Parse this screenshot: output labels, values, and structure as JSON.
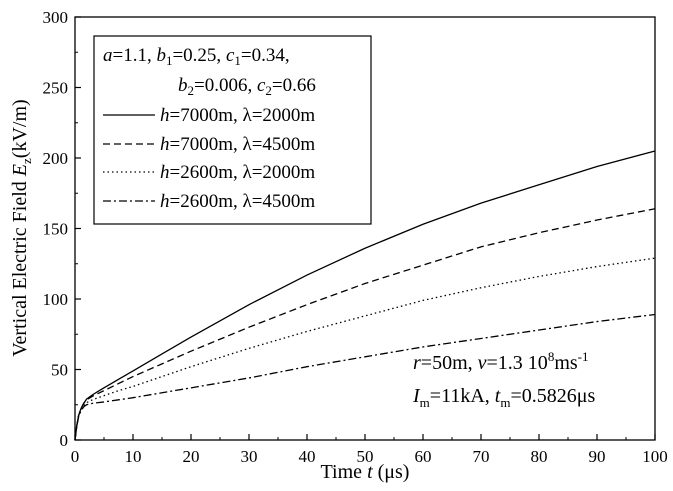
{
  "chart_data": {
    "type": "line",
    "xlabel_prefix": "Time ",
    "xlabel_var": "t",
    "xlabel_unit": " (μs)",
    "ylabel_prefix": "Vertical Electric Field ",
    "ylabel_var": "E",
    "ylabel_sub": "z",
    "ylabel_unit": "(kV/m)",
    "xlim": [
      0,
      100
    ],
    "ylim": [
      0,
      300
    ],
    "xticks": [
      0,
      10,
      20,
      30,
      40,
      50,
      60,
      70,
      80,
      90,
      100
    ],
    "yticks": [
      0,
      50,
      100,
      150,
      200,
      250,
      300
    ],
    "grid": false,
    "legend_position": "top-left",
    "params_line1": {
      "a": "a",
      "a_val": "=1.1, ",
      "b": "b",
      "b_sub": "1",
      "b_val": "=0.25, ",
      "c": "c",
      "c_sub": "1",
      "c_val": "=0.34,"
    },
    "params_line2": {
      "b": "b",
      "b_sub": "2",
      "b_val": "=0.006, ",
      "c": "c",
      "c_sub": "2",
      "c_val": "=0.66"
    },
    "x": [
      0,
      0.3,
      0.6,
      1,
      1.5,
      2,
      3,
      4,
      5,
      7.5,
      10,
      15,
      20,
      30,
      40,
      50,
      60,
      70,
      80,
      90,
      100
    ],
    "series": [
      {
        "name_h": "h",
        "name_h_val": "=7000m,  ",
        "name_l": "λ",
        "name_l_val": "=2000m",
        "dash": "solid",
        "values": [
          0,
          10,
          17,
          22,
          26,
          29,
          32,
          34.5,
          37,
          43,
          49,
          61,
          73,
          96,
          117,
          136,
          153,
          168,
          181,
          194,
          205
        ]
      },
      {
        "name_h": "h",
        "name_h_val": "=7000m,  ",
        "name_l": "λ",
        "name_l_val": "=4500m",
        "dash": "dashed",
        "values": [
          0,
          10,
          17,
          22,
          26,
          28.5,
          31,
          33,
          35,
          40,
          45,
          54,
          63,
          80,
          96,
          111,
          124,
          137,
          147,
          156,
          164
        ]
      },
      {
        "name_h": "h",
        "name_h_val": "=2600m,  ",
        "name_l": "λ",
        "name_l_val": "=2000m",
        "dash": "dotted",
        "values": [
          0,
          10,
          17,
          21,
          24.5,
          26.5,
          28.5,
          30,
          31.5,
          35,
          38,
          45,
          52,
          65,
          77,
          88,
          99,
          108,
          116,
          123,
          129
        ]
      },
      {
        "name_h": "h",
        "name_h_val": "=2600m,  ",
        "name_l": "λ",
        "name_l_val": "=4500m",
        "dash": "dashdot",
        "values": [
          0,
          9.5,
          16,
          20.5,
          23.5,
          25,
          26,
          26.5,
          27,
          28.5,
          30,
          33.5,
          37,
          44,
          52,
          59,
          66,
          72,
          78,
          84,
          89
        ]
      }
    ],
    "annotation_line1": {
      "r": "r",
      "r_val": "=50m, ",
      "v": "v",
      "v_val": "=1.3 10",
      "v_sup": "8",
      "v_unit": "ms",
      "v_unit_sup": "-1"
    },
    "annotation_line2": {
      "i": "I",
      "i_sub": "m",
      "i_val": "=11kA, ",
      "t": "t",
      "t_sub": "m",
      "t_val": "=0.5826μs"
    }
  }
}
